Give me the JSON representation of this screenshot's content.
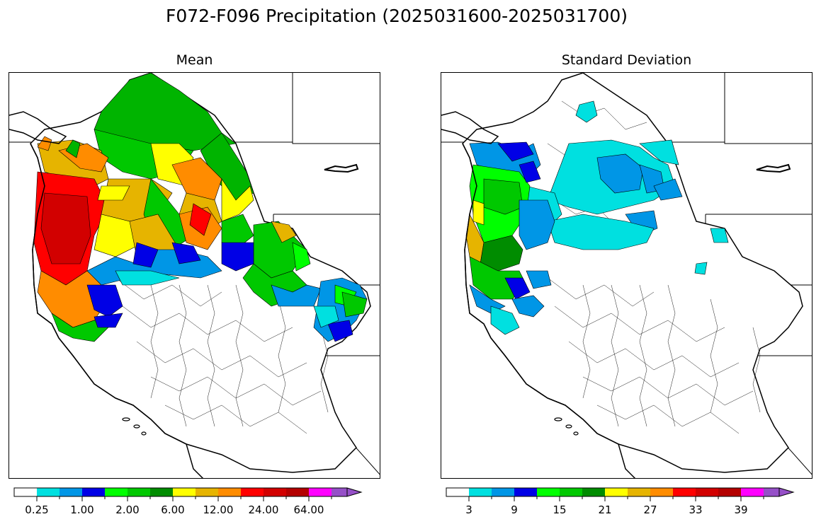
{
  "title": "F072-F096 Precipitation (2025031600-2025031700)",
  "panels": [
    {
      "id": "mean",
      "title": "Mean",
      "colorbar": {
        "colors": [
          "#ffffff",
          "#00e0e0",
          "#0096e6",
          "#0000e6",
          "#00ff00",
          "#00c800",
          "#008c00",
          "#ffff00",
          "#e6b400",
          "#ff8c00",
          "#ff0000",
          "#d20000",
          "#b40000",
          "#ff00ff",
          "#9650c8"
        ],
        "extend": "max",
        "tick_labels": [
          "0.25",
          "1.00",
          "2.00",
          "6.00",
          "12.00",
          "24.00",
          "64.00"
        ]
      }
    },
    {
      "id": "stdev",
      "title": "Standard Deviation",
      "colorbar": {
        "colors": [
          "#ffffff",
          "#00e0e0",
          "#0096e6",
          "#0000e6",
          "#00ff00",
          "#00c800",
          "#008c00",
          "#ffff00",
          "#e6b400",
          "#ff8c00",
          "#ff0000",
          "#d20000",
          "#b40000",
          "#ff00ff",
          "#9650c8"
        ],
        "extend": "max",
        "tick_labels": [
          "3",
          "9",
          "15",
          "21",
          "27",
          "33",
          "39"
        ]
      }
    }
  ]
}
